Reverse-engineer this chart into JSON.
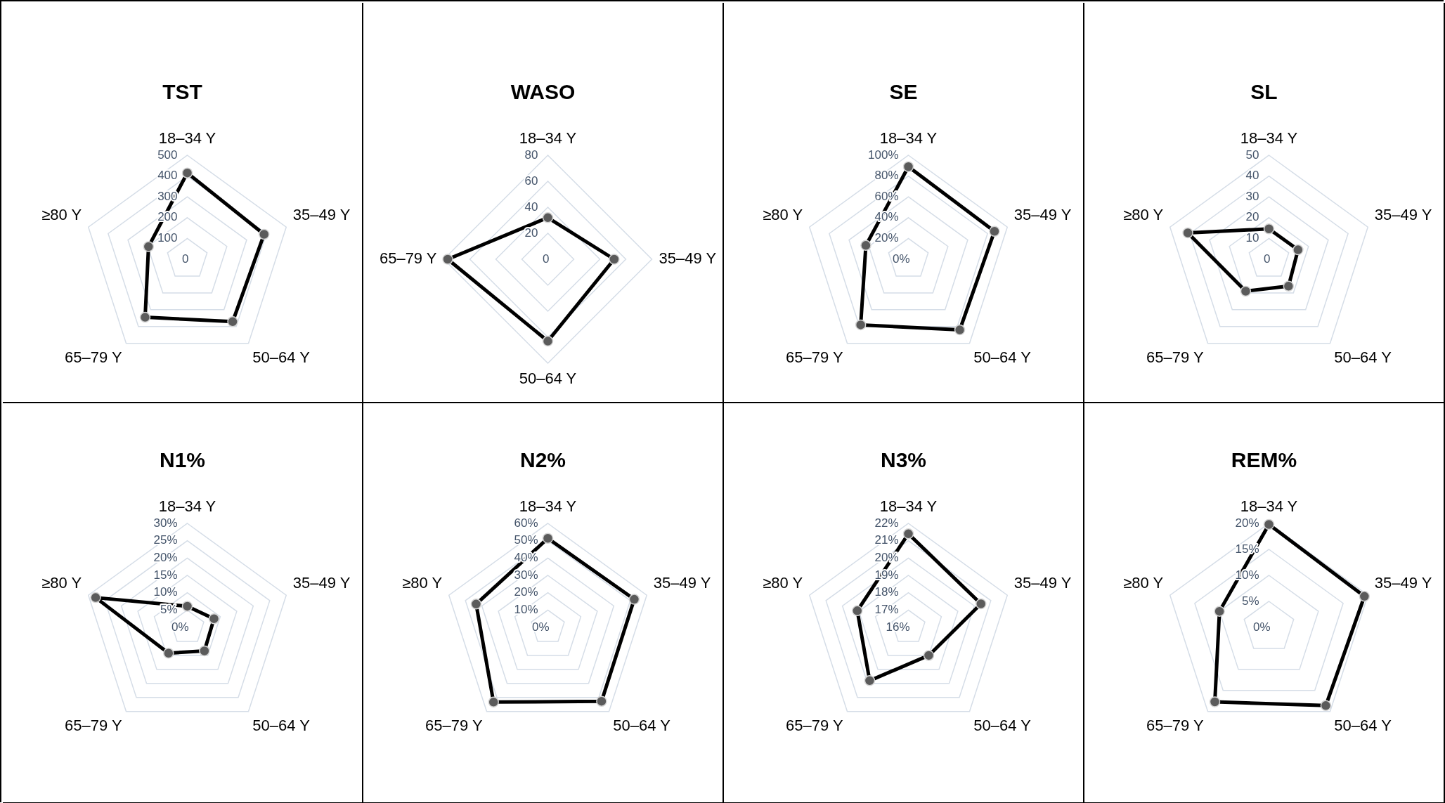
{
  "chart_data": [
    {
      "type": "radar",
      "title": "TST",
      "categories": [
        "18–34 Y",
        "35–49 Y",
        "50–64 Y",
        "65–79 Y",
        "≥80 Y"
      ],
      "series": [
        {
          "color": "#000000",
          "values": [
            415,
            388,
            371,
            345,
            196
          ]
        }
      ],
      "ylim": [
        0,
        500
      ],
      "yticks": [
        0,
        100,
        200,
        300,
        400,
        500
      ],
      "grid": true,
      "marker": "circle"
    },
    {
      "type": "radar",
      "title": "WASO",
      "categories": [
        "18–34 Y",
        "35–49 Y",
        "50–64 Y",
        "65–79 Y"
      ],
      "series": [
        {
          "color": "#000000",
          "values": [
            32,
            51,
            63,
            77
          ]
        }
      ],
      "ylim": [
        0,
        80
      ],
      "yticks": [
        0,
        20,
        40,
        60,
        80
      ],
      "grid": true,
      "marker": "circle"
    },
    {
      "type": "radar",
      "title": "SE",
      "categories": [
        "18–34 Y",
        "35–49 Y",
        "50–64 Y",
        "65–79 Y",
        "≥80 Y"
      ],
      "series": [
        {
          "color": "#000000",
          "values": [
            89,
            87,
            84,
            78,
            43
          ]
        }
      ],
      "ylim": [
        0,
        100
      ],
      "yticks": [
        {
          "value": 0,
          "label": "0%"
        },
        {
          "value": 20,
          "label": "20%"
        },
        {
          "value": 40,
          "label": "40%"
        },
        {
          "value": 60,
          "label": "60%"
        },
        {
          "value": 80,
          "label": "80%"
        },
        {
          "value": 100,
          "label": "100%"
        }
      ],
      "grid": true,
      "marker": "circle"
    },
    {
      "type": "radar",
      "title": "SL",
      "categories": [
        "18–34 Y",
        "35–49 Y",
        "50–64 Y",
        "65–79 Y",
        "≥80 Y"
      ],
      "series": [
        {
          "color": "#000000",
          "values": [
            14.6,
            14.7,
            16,
            19,
            41
          ]
        }
      ],
      "ylim": [
        0,
        50
      ],
      "yticks": [
        0,
        10,
        20,
        30,
        40,
        50
      ],
      "grid": true,
      "marker": "circle"
    },
    {
      "type": "radar",
      "title": "N1%",
      "categories": [
        "18–34 Y",
        "35–49 Y",
        "50–64 Y",
        "65–79 Y",
        "≥80 Y"
      ],
      "series": [
        {
          "color": "#000000",
          "values": [
            6.1,
            8.1,
            8.4,
            9.2,
            27.8
          ]
        }
      ],
      "ylim": [
        0,
        30
      ],
      "yticks": [
        {
          "value": 0,
          "label": "0%"
        },
        {
          "value": 5,
          "label": "5%"
        },
        {
          "value": 10,
          "label": "10%"
        },
        {
          "value": 15,
          "label": "15%"
        },
        {
          "value": 20,
          "label": "20%"
        },
        {
          "value": 25,
          "label": "25%"
        },
        {
          "value": 30,
          "label": "30%"
        }
      ],
      "grid": true,
      "marker": "circle"
    },
    {
      "type": "radar",
      "title": "N2%",
      "categories": [
        "18–34 Y",
        "35–49 Y",
        "50–64 Y",
        "65–79 Y",
        "≥80 Y"
      ],
      "series": [
        {
          "color": "#000000",
          "values": [
            51.4,
            52.4,
            52.7,
            53.3,
            43.5
          ]
        }
      ],
      "ylim": [
        0,
        60
      ],
      "yticks": [
        {
          "value": 0,
          "label": "0%"
        },
        {
          "value": 10,
          "label": "10%"
        },
        {
          "value": 20,
          "label": "20%"
        },
        {
          "value": 30,
          "label": "30%"
        },
        {
          "value": 40,
          "label": "40%"
        },
        {
          "value": 50,
          "label": "50%"
        },
        {
          "value": 60,
          "label": "60%"
        }
      ],
      "grid": true,
      "marker": "circle"
    },
    {
      "type": "radar",
      "title": "N3%",
      "categories": [
        "18–34 Y",
        "35–49 Y",
        "50–64 Y",
        "65–79 Y",
        "≥80 Y"
      ],
      "series": [
        {
          "color": "#000000",
          "values": [
            21.4,
            20.4,
            18.0,
            19.8,
            19.1
          ]
        }
      ],
      "ylim": [
        16,
        22
      ],
      "yticks": [
        {
          "value": 16,
          "label": "16%"
        },
        {
          "value": 17,
          "label": "17%"
        },
        {
          "value": 18,
          "label": "18%"
        },
        {
          "value": 19,
          "label": "19%"
        },
        {
          "value": 20,
          "label": "20%"
        },
        {
          "value": 21,
          "label": "21%"
        },
        {
          "value": 22,
          "label": "22%"
        }
      ],
      "grid": true,
      "marker": "circle"
    },
    {
      "type": "radar",
      "title": "REM%",
      "categories": [
        "18–34 Y",
        "35–49 Y",
        "50–64 Y",
        "65–79 Y",
        "≥80 Y"
      ],
      "series": [
        {
          "color": "#000000",
          "values": [
            19.8,
            19.3,
            18.6,
            17.7,
            10.0
          ]
        }
      ],
      "ylim": [
        0,
        20
      ],
      "yticks": [
        {
          "value": 0,
          "label": "0%"
        },
        {
          "value": 5,
          "label": "5%"
        },
        {
          "value": 10,
          "label": "10%"
        },
        {
          "value": 15,
          "label": "15%"
        },
        {
          "value": 20,
          "label": "20%"
        }
      ],
      "grid": true,
      "marker": "circle"
    }
  ]
}
